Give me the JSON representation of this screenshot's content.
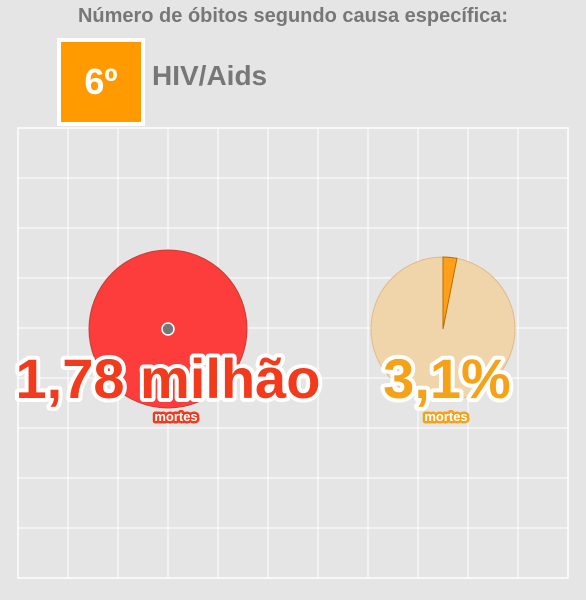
{
  "header": {
    "title": "Número de óbitos segundo causa específica:",
    "rank": "6º",
    "cause": "HIV/Aids"
  },
  "colors": {
    "background": "#e5e5e5",
    "rank_box": "#ff9a00",
    "deaths_circle": "#ff3333",
    "deaths_text": "#f23a1c",
    "share_base": "#f0d5ab",
    "share_slice": "#ff9f1a",
    "share_text": "#f5a219"
  },
  "chart_data": [
    {
      "type": "bubble",
      "series": [
        {
          "values": [
            1.78
          ]
        }
      ],
      "unit": "milhão de mortes",
      "data_label": "1,78 milhão",
      "sublabel": "mortes",
      "grid": true
    },
    {
      "type": "pie",
      "values": [
        3.1,
        96.9
      ],
      "data_label": "3,1%",
      "sublabel": "mortes",
      "grid": true
    }
  ]
}
